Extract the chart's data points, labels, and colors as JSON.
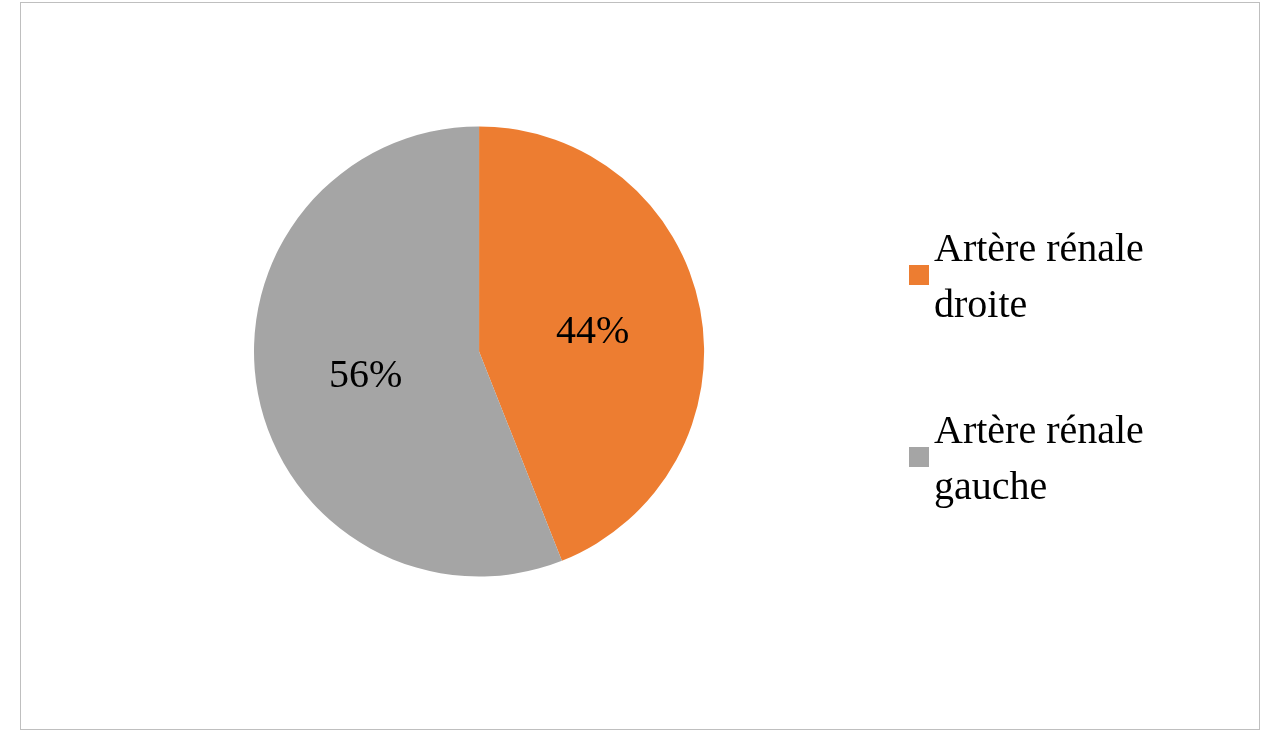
{
  "chart_data": {
    "type": "pie",
    "categories": [
      "Artère rénale droite",
      "Artère rénale gauche"
    ],
    "values": [
      44,
      56
    ],
    "colors": [
      "#ed7d31",
      "#a5a5a5"
    ],
    "value_labels": [
      "44%",
      "56%"
    ],
    "legend": "right"
  }
}
